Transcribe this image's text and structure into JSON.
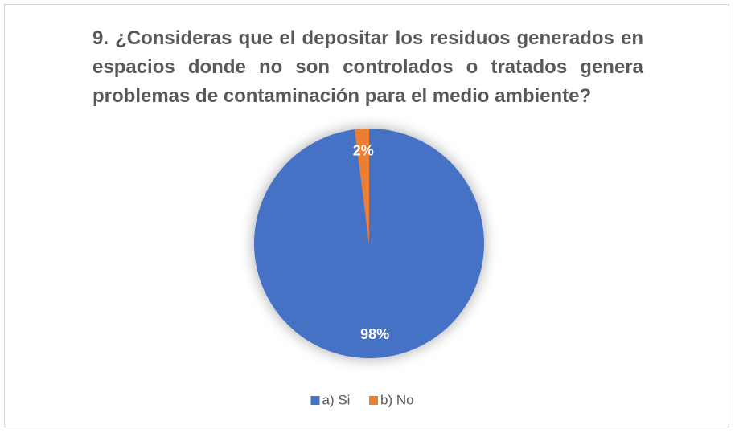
{
  "chart_data": {
    "type": "pie",
    "title": "9. ¿Consideras que el depositar los residuos generados en espacios donde no son controlados o tratados genera problemas de contaminación para el medio ambiente?",
    "categories": [
      "a) Si",
      "b) No"
    ],
    "values": [
      98,
      2
    ],
    "value_labels": [
      "98%",
      "2%"
    ],
    "colors": [
      "#4472c4",
      "#ed7d31"
    ],
    "legend": "bottom"
  }
}
